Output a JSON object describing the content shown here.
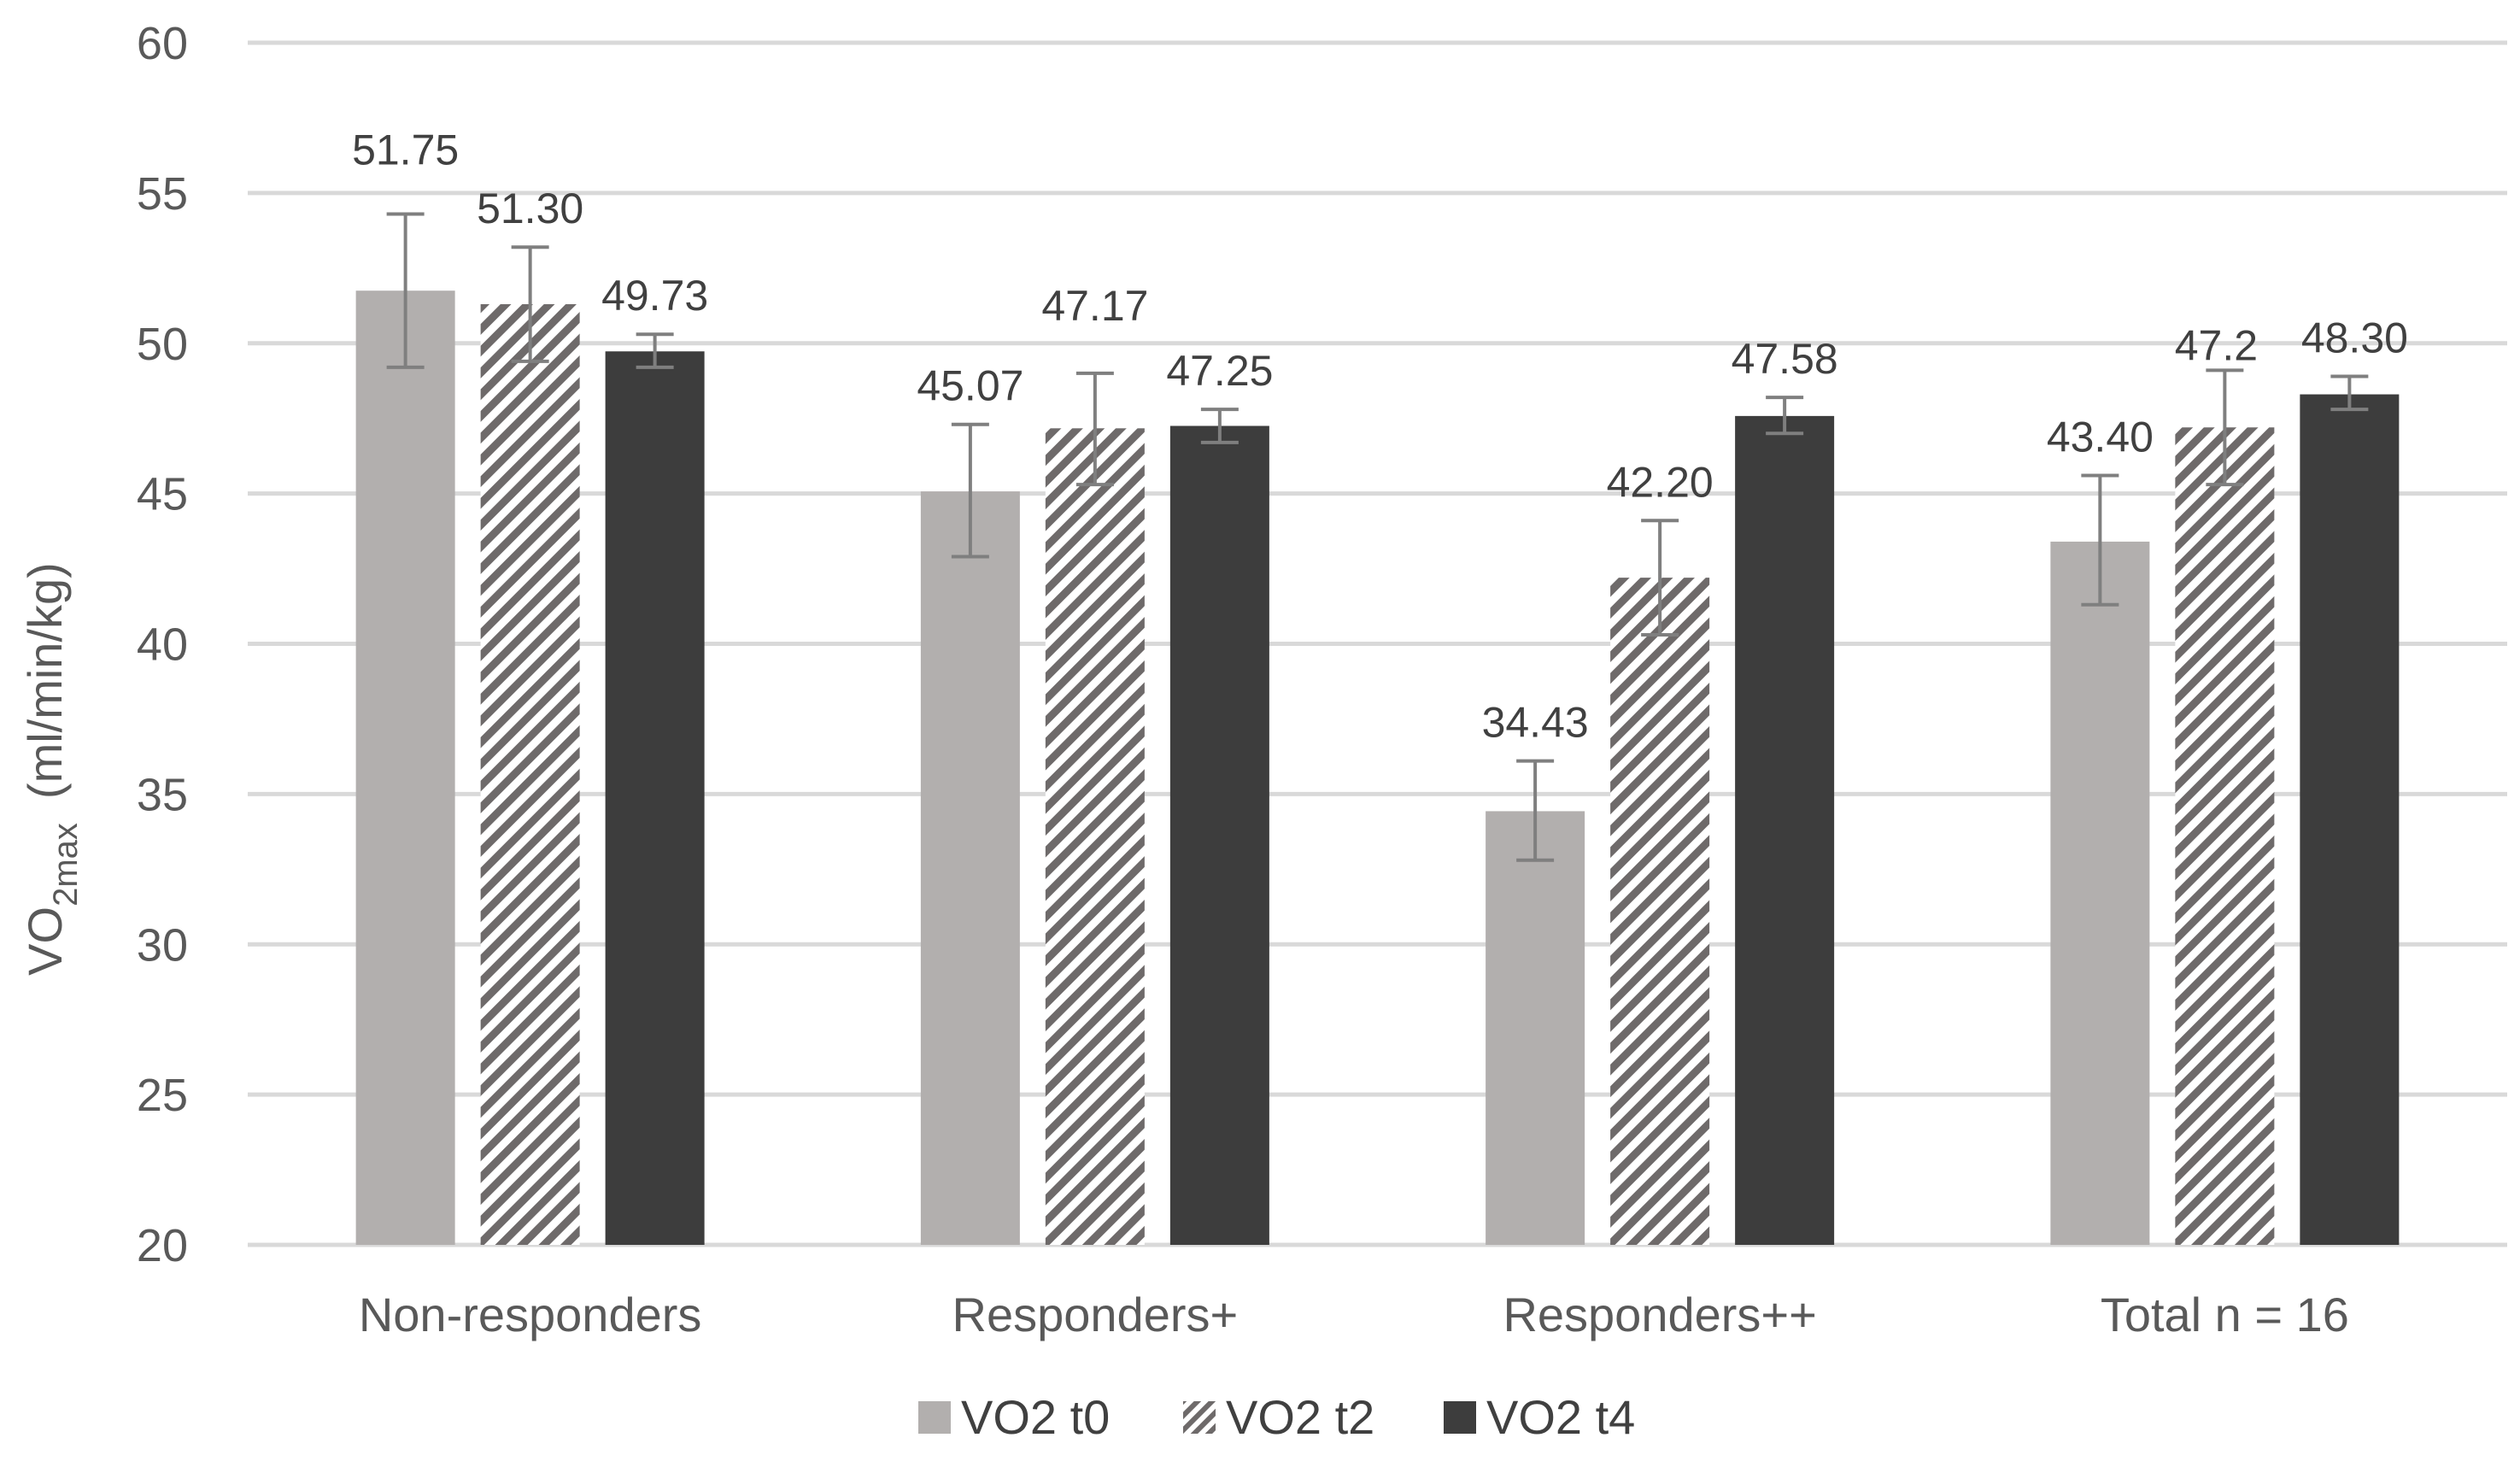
{
  "chart_data": {
    "type": "bar",
    "title": "",
    "xlabel": "",
    "ylabel": {
      "base": "VO",
      "subscript": "2max",
      "unit": "(ml/min/kg)"
    },
    "ylim": [
      20,
      60
    ],
    "yticks": [
      20,
      25,
      30,
      35,
      40,
      45,
      50,
      55,
      60
    ],
    "grid": true,
    "legend_position": "bottom",
    "categories": [
      "Non-responders",
      "Responders+",
      "Responders++",
      "Total n = 16"
    ],
    "series": [
      {
        "name": "VO2 t0",
        "fill": "solid",
        "color": "#b2afae",
        "values": [
          51.75,
          45.07,
          34.43,
          43.4
        ],
        "labels": [
          "51.75",
          "45.07",
          "34.43",
          "43.40"
        ],
        "error_low": [
          49.2,
          42.9,
          32.8,
          41.3
        ],
        "error_high": [
          54.3,
          47.3,
          36.1,
          45.6
        ]
      },
      {
        "name": "VO2 t2",
        "fill": "hatched",
        "color": "#6e6a6a",
        "values": [
          51.3,
          47.17,
          42.2,
          47.2
        ],
        "labels": [
          "51.30",
          "47.17",
          "42.20",
          "47.2"
        ],
        "error_low": [
          49.4,
          45.3,
          40.3,
          45.3
        ],
        "error_high": [
          53.2,
          49.0,
          44.1,
          49.1
        ]
      },
      {
        "name": "VO2 t4",
        "fill": "solid",
        "color": "#3d3d3d",
        "values": [
          49.73,
          47.25,
          47.58,
          48.3
        ],
        "labels": [
          "49.73",
          "47.25",
          "47.58",
          "48.30"
        ],
        "error_low": [
          49.2,
          46.7,
          47.0,
          47.8
        ],
        "error_high": [
          50.3,
          47.8,
          48.2,
          48.9
        ]
      }
    ]
  }
}
